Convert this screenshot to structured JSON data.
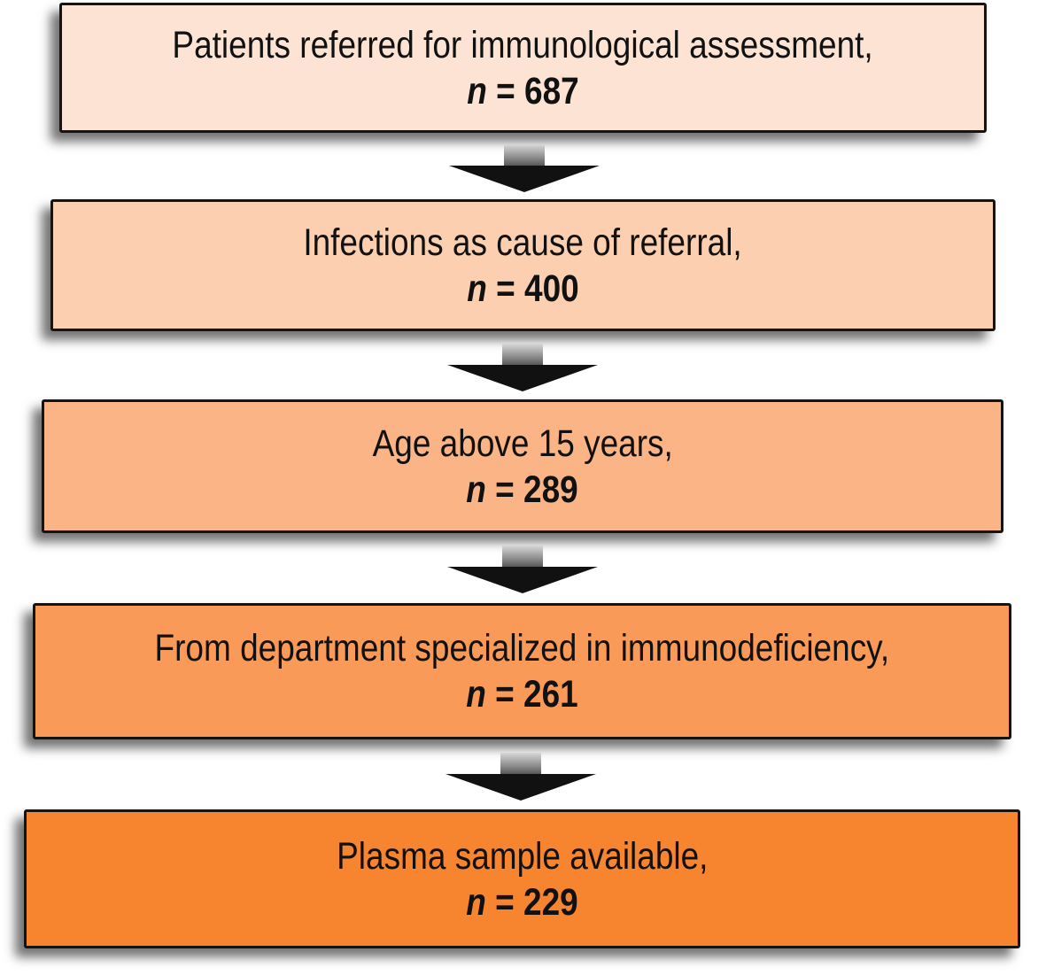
{
  "flow": {
    "steps": [
      {
        "label": "Patients referred for immunological assessment,",
        "n_symbol": "n",
        "n_text": " = 687",
        "fill": "#fce3d3"
      },
      {
        "label": "Infections as cause of referral,",
        "n_symbol": "n",
        "n_text": " = 400",
        "fill": "#fbcfb0"
      },
      {
        "label": "Age above 15 years,",
        "n_symbol": "n",
        "n_text": " = 289",
        "fill": "#fab486"
      },
      {
        "label": "From department specialized in immunodeficiency,",
        "n_symbol": "n",
        "n_text": " = 261",
        "fill": "#f99a58"
      },
      {
        "label": "Plasma sample available,",
        "n_symbol": "n",
        "n_text": " = 229",
        "fill": "#f7842f"
      }
    ],
    "arrow_icon": "down-arrow-icon",
    "colors": {
      "border": "#141414",
      "arrow": "#111111"
    }
  }
}
